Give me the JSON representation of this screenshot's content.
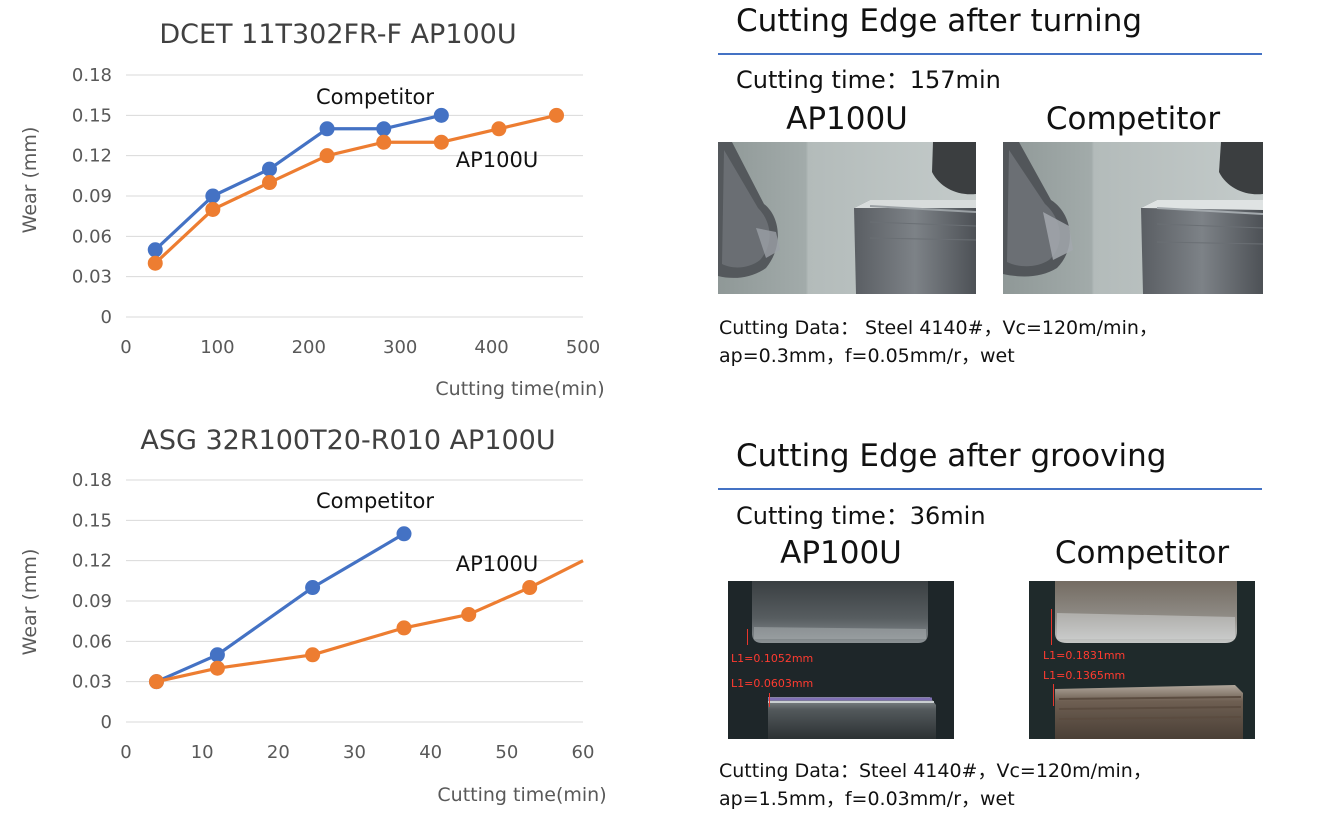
{
  "charts": [
    {
      "id": "turning",
      "title": "DCET 11T302FR-F AP100U",
      "ylabel": "Wear (mm)",
      "xlabel": "Cutting time(min)",
      "xlim": [
        0,
        500
      ],
      "ylim": [
        0,
        0.18
      ],
      "xticks": [
        "0",
        "100",
        "200",
        "300",
        "400",
        "500"
      ],
      "yticks": [
        "0",
        "0.03",
        "0.06",
        "0.09",
        "0.12",
        "0.15",
        "0.18"
      ],
      "series_labels": {
        "competitor": "Competitor",
        "ap100u": "AP100U"
      }
    },
    {
      "id": "grooving",
      "title": "ASG 32R100T20-R010 AP100U",
      "ylabel": "Wear (mm)",
      "xlabel": "Cutting time(min)",
      "xlim": [
        0,
        60
      ],
      "ylim": [
        0,
        0.18
      ],
      "xticks": [
        "0",
        "10",
        "20",
        "30",
        "40",
        "50",
        "60"
      ],
      "yticks": [
        "0",
        "0.03",
        "0.06",
        "0.09",
        "0.12",
        "0.15",
        "0.18"
      ],
      "series_labels": {
        "competitor": "Competitor",
        "ap100u": "AP100U"
      }
    }
  ],
  "chart_data": [
    {
      "type": "line",
      "title": "DCET 11T302FR-F AP100U",
      "xlabel": "Cutting time(min)",
      "ylabel": "Wear (mm)",
      "xlim": [
        0,
        500
      ],
      "ylim": [
        0,
        0.18
      ],
      "grid": true,
      "series": [
        {
          "name": "Competitor",
          "color": "#4472c4",
          "x": [
            32,
            95,
            157,
            220,
            282,
            345
          ],
          "y": [
            0.05,
            0.09,
            0.11,
            0.14,
            0.14,
            0.15
          ]
        },
        {
          "name": "AP100U",
          "color": "#ed7d31",
          "x": [
            32,
            95,
            157,
            220,
            282,
            345,
            408,
            471
          ],
          "y": [
            0.04,
            0.08,
            0.1,
            0.12,
            0.13,
            0.13,
            0.14,
            0.15
          ]
        }
      ]
    },
    {
      "type": "line",
      "title": "ASG 32R100T20-R010 AP100U",
      "xlabel": "Cutting time(min)",
      "ylabel": "Wear (mm)",
      "xlim": [
        0,
        60
      ],
      "ylim": [
        0,
        0.18
      ],
      "grid": true,
      "series": [
        {
          "name": "Competitor",
          "color": "#4472c4",
          "x": [
            4,
            12,
            24.5,
            36.5
          ],
          "y": [
            0.03,
            0.05,
            0.1,
            0.14
          ]
        },
        {
          "name": "AP100U",
          "color": "#ed7d31",
          "x": [
            4,
            12,
            24.5,
            36.5,
            45,
            53
          ],
          "y": [
            0.03,
            0.04,
            0.05,
            0.07,
            0.08,
            0.1
          ],
          "line_extends_to": [
            60,
            0.12
          ]
        }
      ]
    }
  ],
  "sections": [
    {
      "title": "Cutting Edge after turning",
      "time": "Cutting time：157min",
      "col_left": "AP100U",
      "col_right": "Competitor",
      "cutting_data_line1": "Cutting Data：  Steel 4140#，Vc=120m/min，",
      "cutting_data_line2": "ap=0.3mm，f=0.05mm/r，wet"
    },
    {
      "title": "Cutting Edge after grooving",
      "time": "Cutting time：36min",
      "col_left": "AP100U",
      "col_right": "Competitor",
      "cutting_data_line1": "Cutting Data：Steel 4140#，Vc=120m/min，",
      "cutting_data_line2": "ap=1.5mm，f=0.03mm/r，wet",
      "measurements": {
        "ap100u_top": "L1=0.1052mm",
        "ap100u_bottom": "L1=0.0603mm",
        "competitor_top": "L1=0.1831mm",
        "competitor_bottom": "L1=0.1365mm"
      }
    }
  ],
  "colors": {
    "competitor": "#4472c4",
    "ap100u": "#ed7d31",
    "grid": "#d9d9d9",
    "rule": "#4472c4",
    "measure": "#e8352b"
  }
}
